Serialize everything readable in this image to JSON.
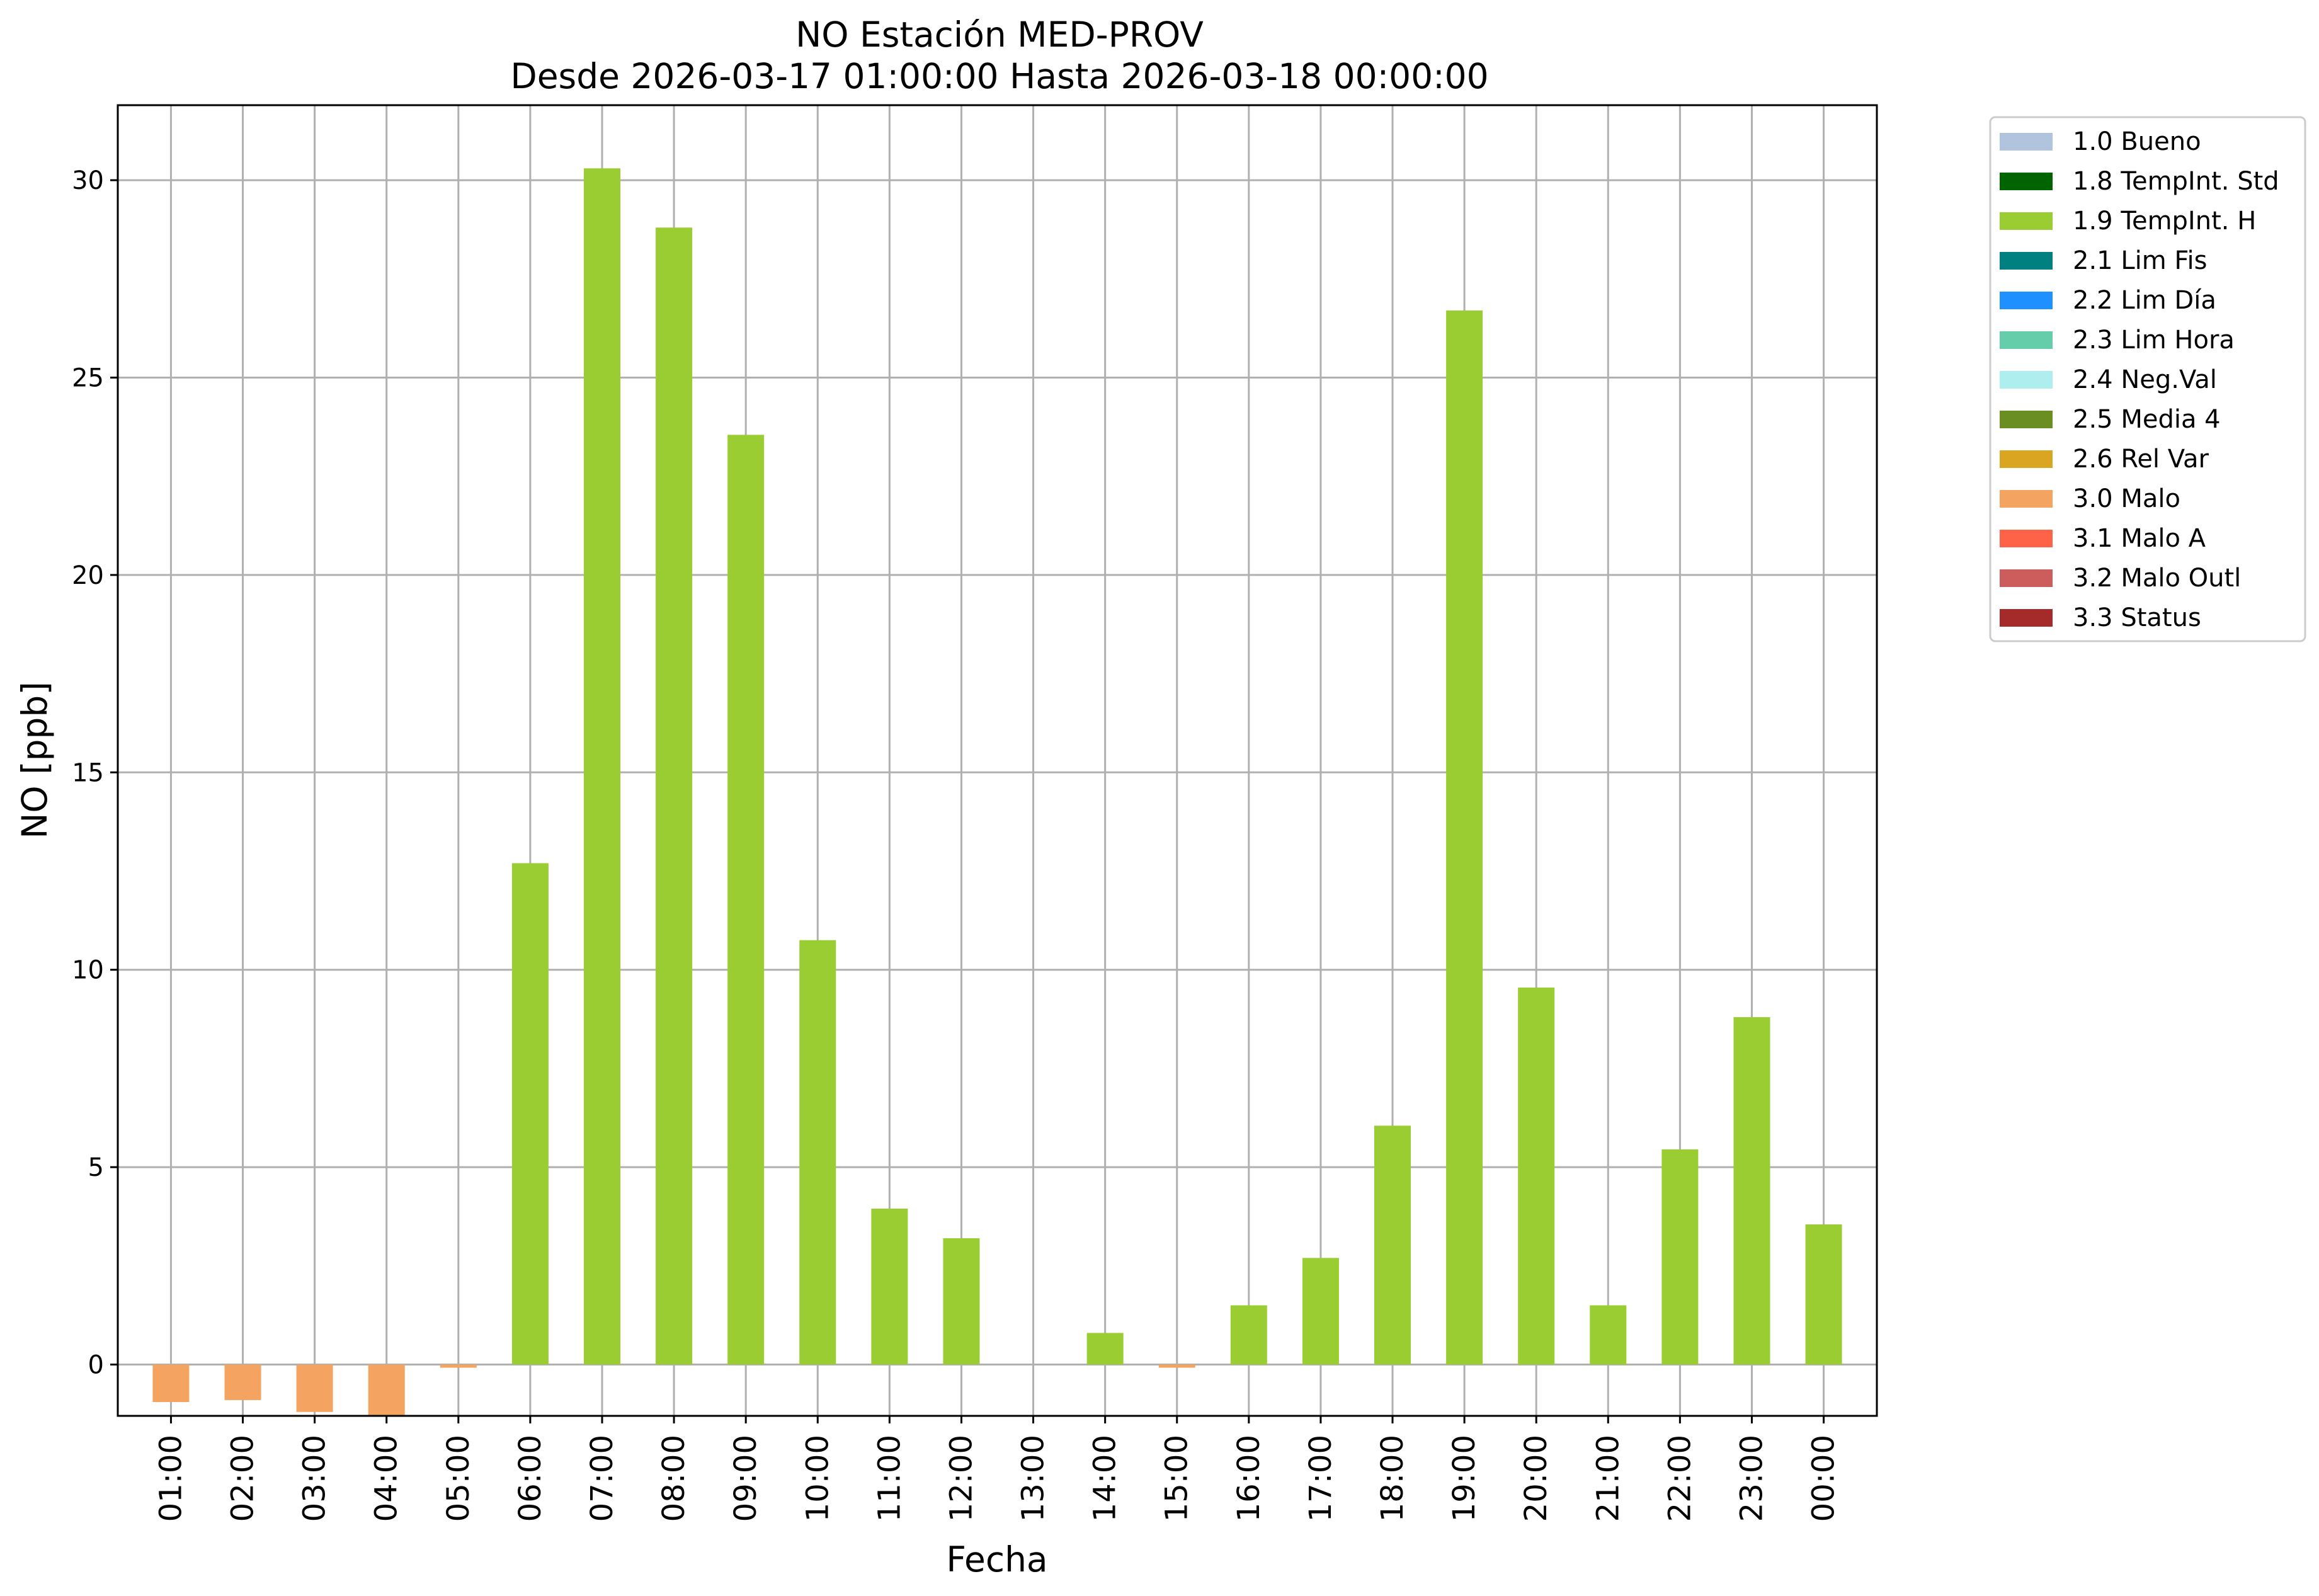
{
  "chart_data": {
    "type": "bar",
    "title": "NO Estación MED-PROV",
    "subtitle": "Desde 2026-03-17 01:00:00 Hasta 2026-03-18 00:00:00",
    "xlabel": "Fecha",
    "ylabel": "NO [ppb]",
    "ylim": [
      -1.3,
      31.9
    ],
    "yticks": [
      0,
      5,
      10,
      15,
      20,
      25,
      30
    ],
    "grid": true,
    "legend_position": "outside-right-top",
    "categories": [
      "01:00",
      "02:00",
      "03:00",
      "04:00",
      "05:00",
      "06:00",
      "07:00",
      "08:00",
      "09:00",
      "10:00",
      "11:00",
      "12:00",
      "13:00",
      "14:00",
      "15:00",
      "16:00",
      "17:00",
      "18:00",
      "19:00",
      "20:00",
      "21:00",
      "22:00",
      "23:00",
      "00:00"
    ],
    "values": [
      -0.95,
      -0.9,
      -1.2,
      -1.3,
      -0.08,
      12.7,
      30.3,
      28.8,
      23.55,
      10.75,
      3.95,
      3.2,
      0,
      0.8,
      -0.08,
      1.5,
      2.7,
      6.05,
      26.7,
      9.55,
      1.5,
      5.45,
      8.8,
      3.55
    ],
    "flags": [
      "3.0 Malo",
      "3.0 Malo",
      "3.0 Malo",
      "3.0 Malo",
      "3.0 Malo",
      "1.9 TempInt. H",
      "1.9 TempInt. H",
      "1.9 TempInt. H",
      "1.9 TempInt. H",
      "1.9 TempInt. H",
      "1.9 TempInt. H",
      "1.9 TempInt. H",
      "1.9 TempInt. H",
      "1.9 TempInt. H",
      "3.0 Malo",
      "1.9 TempInt. H",
      "1.9 TempInt. H",
      "1.9 TempInt. H",
      "1.9 TempInt. H",
      "1.9 TempInt. H",
      "1.9 TempInt. H",
      "1.9 TempInt. H",
      "1.9 TempInt. H",
      "1.9 TempInt. H"
    ],
    "legend": [
      {
        "label": "1.0 Bueno",
        "color": "#b0c4de"
      },
      {
        "label": "1.8 TempInt. Std",
        "color": "#006400"
      },
      {
        "label": "1.9 TempInt. H",
        "color": "#9acd32"
      },
      {
        "label": "2.1 Lim Fis",
        "color": "#008080"
      },
      {
        "label": "2.2 Lim Día",
        "color": "#1e90ff"
      },
      {
        "label": "2.3 Lim Hora",
        "color": "#66cdaa"
      },
      {
        "label": "2.4 Neg.Val",
        "color": "#afeeee"
      },
      {
        "label": "2.5 Media 4",
        "color": "#6b8e23"
      },
      {
        "label": "2.6 Rel Var",
        "color": "#daa520"
      },
      {
        "label": "3.0 Malo",
        "color": "#f4a460"
      },
      {
        "label": "3.1 Malo A",
        "color": "#ff6347"
      },
      {
        "label": "3.2 Malo Outl",
        "color": "#cd5c5c"
      },
      {
        "label": "3.3 Status",
        "color": "#a52a2a"
      }
    ]
  }
}
